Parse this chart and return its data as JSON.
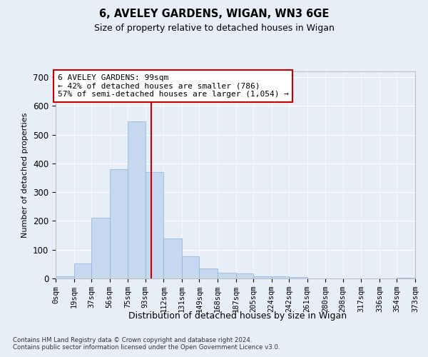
{
  "title1": "6, AVELEY GARDENS, WIGAN, WN3 6GE",
  "title2": "Size of property relative to detached houses in Wigan",
  "xlabel": "Distribution of detached houses by size in Wigan",
  "ylabel": "Number of detached properties",
  "bar_color": "#c5d8f0",
  "bar_edge_color": "#88b4d8",
  "background_color": "#e8eef8",
  "grid_color": "#ffffff",
  "vline_x": 99,
  "vline_color": "#cc0000",
  "annotation_text": "6 AVELEY GARDENS: 99sqm\n← 42% of detached houses are smaller (786)\n57% of semi-detached houses are larger (1,054) →",
  "annotation_box_facecolor": "#ffffff",
  "annotation_box_edgecolor": "#cc0000",
  "bins": [
    0,
    19,
    37,
    56,
    75,
    93,
    112,
    131,
    149,
    168,
    187,
    205,
    224,
    242,
    261,
    280,
    298,
    317,
    336,
    354,
    373
  ],
  "bin_labels": [
    "0sqm",
    "19sqm",
    "37sqm",
    "56sqm",
    "75sqm",
    "93sqm",
    "112sqm",
    "131sqm",
    "149sqm",
    "168sqm",
    "187sqm",
    "205sqm",
    "224sqm",
    "242sqm",
    "261sqm",
    "280sqm",
    "298sqm",
    "317sqm",
    "336sqm",
    "354sqm",
    "373sqm"
  ],
  "bar_heights": [
    7,
    52,
    211,
    381,
    547,
    370,
    140,
    77,
    35,
    21,
    17,
    8,
    8,
    4,
    1,
    0,
    0,
    0,
    0,
    2
  ],
  "ylim": [
    0,
    720
  ],
  "yticks": [
    0,
    100,
    200,
    300,
    400,
    500,
    600,
    700
  ],
  "footer1": "Contains HM Land Registry data © Crown copyright and database right 2024.",
  "footer2": "Contains public sector information licensed under the Open Government Licence v3.0."
}
